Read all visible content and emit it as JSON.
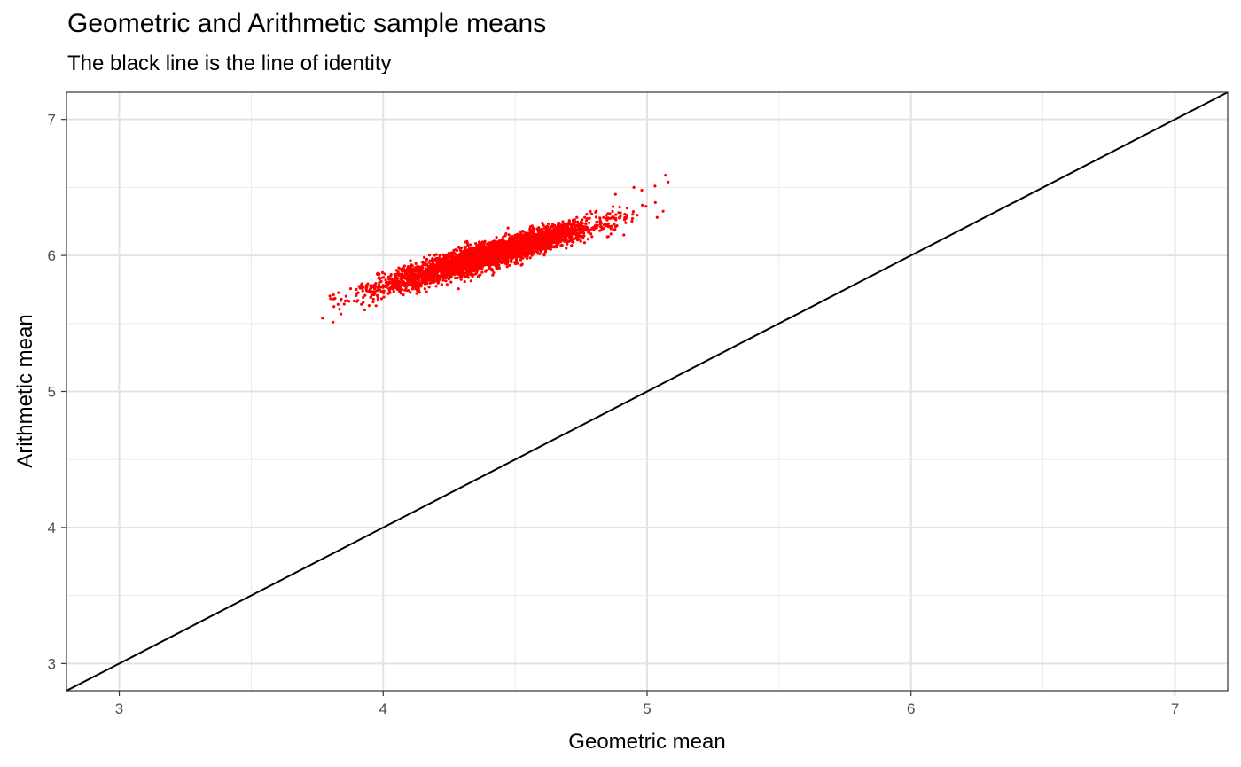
{
  "chart_data": {
    "type": "scatter",
    "title": "Geometric and Arithmetic sample means",
    "subtitle": "The black line is the line of identity",
    "xlabel": "Geometric mean",
    "ylabel": "Arithmetic mean",
    "xlim": [
      2.8,
      7.2
    ],
    "ylim": [
      2.8,
      7.2
    ],
    "x_ticks": [
      3,
      4,
      5,
      6,
      7
    ],
    "y_ticks": [
      3,
      4,
      5,
      6,
      7
    ],
    "grid": true,
    "point_color": "#ff0000",
    "identity_line": {
      "intercept": 0,
      "slope": 1,
      "color": "#000000"
    },
    "cluster": {
      "x_mean": 4.4,
      "x_sd": 0.2,
      "x_min": 3.77,
      "x_max": 5.08,
      "slope": 0.56,
      "resid_sd": 0.045
    },
    "outlier_points": [
      {
        "x": 3.77,
        "y": 5.54
      },
      {
        "x": 3.81,
        "y": 5.51
      },
      {
        "x": 3.84,
        "y": 5.57
      },
      {
        "x": 3.9,
        "y": 5.72
      },
      {
        "x": 3.93,
        "y": 5.6
      },
      {
        "x": 4.03,
        "y": 5.86
      },
      {
        "x": 4.88,
        "y": 6.45
      },
      {
        "x": 4.95,
        "y": 6.5
      },
      {
        "x": 4.98,
        "y": 6.48
      },
      {
        "x": 5.03,
        "y": 6.51
      },
      {
        "x": 5.07,
        "y": 6.59
      },
      {
        "x": 5.08,
        "y": 6.54
      }
    ]
  }
}
